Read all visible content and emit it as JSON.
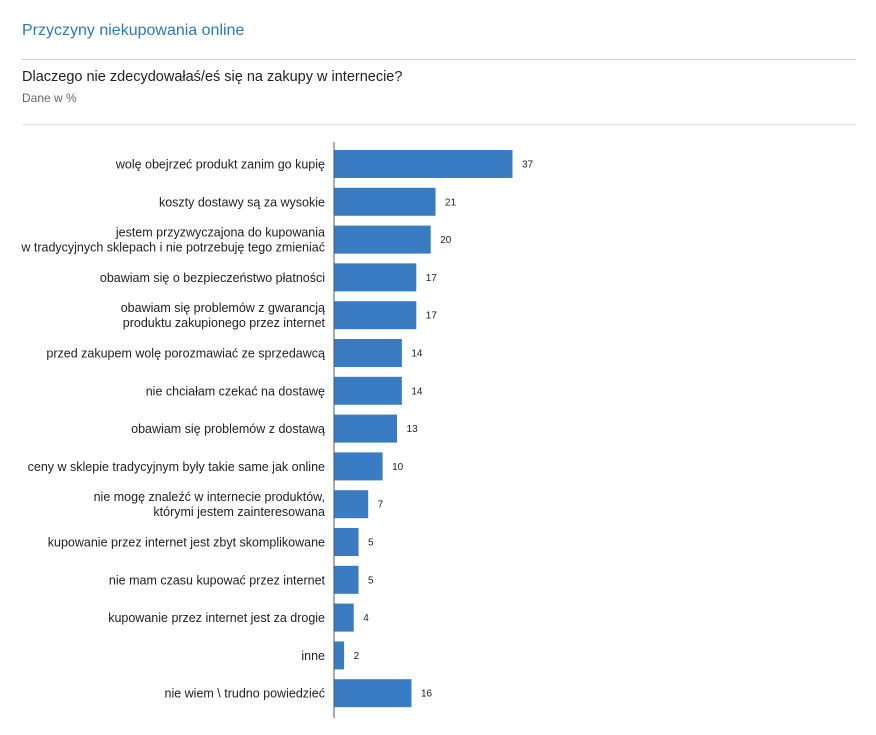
{
  "header": {
    "title": "Przyczyny niekupowania online",
    "question": "Dlaczego nie zdecydowałaś/eś się na zakupy w internecie?",
    "unit": "Dane w %"
  },
  "colors": {
    "bar": "#3a7cc3",
    "title": "#2f7ab8"
  },
  "chart_data": {
    "type": "bar",
    "orientation": "horizontal",
    "grid": false,
    "legend": "none",
    "xlim": [
      0,
      40
    ],
    "categories": [
      [
        "wolę obejrzeć produkt zanim go kupię"
      ],
      [
        "koszty dostawy są za wysokie"
      ],
      [
        "jestem przyzwyczajona do kupowania",
        "w tradycyjnych sklepach i nie potrzebuję tego zmieniać"
      ],
      [
        "obawiam się o bezpieczeństwo płatności"
      ],
      [
        "obawiam się problemów z gwarancją",
        "produktu zakupionego przez internet"
      ],
      [
        "przed zakupem wolę porozmawiać ze sprzedawcą"
      ],
      [
        "nie chciałam czekać na dostawę"
      ],
      [
        "obawiam się problemów z dostawą"
      ],
      [
        "ceny w sklepie tradycyjnym były takie same jak online"
      ],
      [
        "nie mogę znaleźć w internecie produktów,",
        "którymi jestem zainteresowana"
      ],
      [
        "kupowanie przez internet jest zbyt skomplikowane"
      ],
      [
        "nie mam czasu kupować przez internet"
      ],
      [
        "kupowanie przez internet jest za drogie"
      ],
      [
        "inne"
      ],
      [
        "nie wiem \\ trudno powiedzieć"
      ]
    ],
    "values": [
      37,
      21,
      20,
      17,
      17,
      14,
      14,
      13,
      10,
      7,
      5,
      5,
      4,
      2,
      16
    ]
  }
}
